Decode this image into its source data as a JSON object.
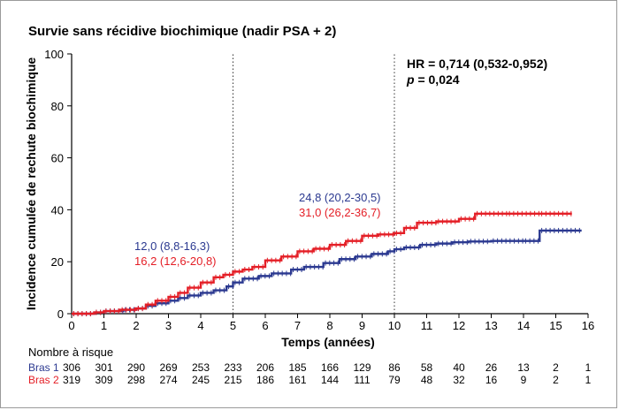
{
  "chart_data": {
    "type": "line",
    "step": true,
    "title": "Survie sans récidive biochimique (nadir PSA + 2)",
    "xlabel": "Temps (années)",
    "ylabel": "Incidence cumulée de rechute biochimique",
    "xlim": [
      0,
      16
    ],
    "ylim": [
      0,
      100
    ],
    "xticks": [
      0,
      1,
      2,
      3,
      4,
      5,
      6,
      7,
      8,
      9,
      10,
      11,
      12,
      13,
      14,
      15,
      16
    ],
    "yticks": [
      0,
      20,
      40,
      60,
      80,
      100
    ],
    "grid": false,
    "reference_lines_x": [
      5,
      10
    ],
    "colors": {
      "bras1": "#2b3990",
      "bras2": "#e41e26",
      "axis": "#000000"
    },
    "series": [
      {
        "name": "Bras 1",
        "x": [
          0,
          0.7,
          1.0,
          1.6,
          2.0,
          2.3,
          2.6,
          3.0,
          3.3,
          3.6,
          4.0,
          4.4,
          4.8,
          5.0,
          5.3,
          5.8,
          6.2,
          6.8,
          7.2,
          7.8,
          8.3,
          8.8,
          9.3,
          9.8,
          10.0,
          10.3,
          10.8,
          11.3,
          11.8,
          12.3,
          13.0,
          14.0,
          14.5,
          15.8
        ],
        "y": [
          0,
          0.5,
          1.0,
          1.5,
          2.0,
          3.0,
          4.0,
          5.0,
          6.0,
          7.0,
          8.0,
          9.0,
          10.5,
          12.0,
          13.5,
          14.5,
          15.5,
          17.0,
          18.0,
          19.5,
          21.0,
          22.0,
          23.0,
          24.0,
          24.8,
          25.5,
          26.5,
          27.0,
          27.5,
          27.8,
          28.0,
          28.0,
          32.0,
          32.0
        ]
      },
      {
        "name": "Bras 2",
        "x": [
          0,
          0.7,
          1.0,
          1.5,
          2.0,
          2.3,
          2.6,
          3.0,
          3.3,
          3.6,
          4.0,
          4.4,
          4.7,
          5.0,
          5.3,
          5.6,
          6.0,
          6.5,
          7.0,
          7.5,
          8.0,
          8.5,
          9.0,
          9.5,
          10.0,
          10.3,
          10.7,
          11.3,
          12.0,
          12.5,
          13.5,
          14.5,
          15.5
        ],
        "y": [
          0,
          0.5,
          1.0,
          1.5,
          2.0,
          3.5,
          5.0,
          6.5,
          8.0,
          10.0,
          12.0,
          14.0,
          15.0,
          16.2,
          17.0,
          18.0,
          20.5,
          22.0,
          24.0,
          25.0,
          26.5,
          28.0,
          30.0,
          30.5,
          31.0,
          33.0,
          35.0,
          35.5,
          36.5,
          38.5,
          38.5,
          38.5,
          38.5
        ]
      }
    ],
    "annotations": [
      {
        "id": "hr",
        "text": "HR = 0,714 (0,532-0,952)",
        "bold": true,
        "color": "#000000"
      },
      {
        "id": "p",
        "prefix": "p",
        "text": " = 0,024",
        "bold": true,
        "color": "#000000"
      },
      {
        "id": "b1_5y",
        "text": "12,0 (8,8-16,3)",
        "color": "#2b3990"
      },
      {
        "id": "b2_5y",
        "text": "16,2 (12,6-20,8)",
        "color": "#e41e26"
      },
      {
        "id": "b1_10y",
        "text": "24,8 (20,2-30,5)",
        "color": "#2b3990"
      },
      {
        "id": "b2_10y",
        "text": "31,0 (26,2-36,7)",
        "color": "#e41e26"
      }
    ],
    "risk_table": {
      "title": "Nombre à risque",
      "rows": [
        {
          "label": "Bras 1",
          "color": "#2b3990",
          "values": [
            "306",
            "301",
            "290",
            "269",
            "253",
            "233",
            "206",
            "185",
            "166",
            "129",
            "86",
            "58",
            "40",
            "26",
            "13",
            "2",
            "1"
          ]
        },
        {
          "label": "Bras 2",
          "color": "#e41e26",
          "values": [
            "319",
            "309",
            "298",
            "274",
            "245",
            "215",
            "186",
            "161",
            "144",
            "111",
            "79",
            "48",
            "32",
            "16",
            "9",
            "2",
            "1"
          ]
        }
      ]
    }
  }
}
